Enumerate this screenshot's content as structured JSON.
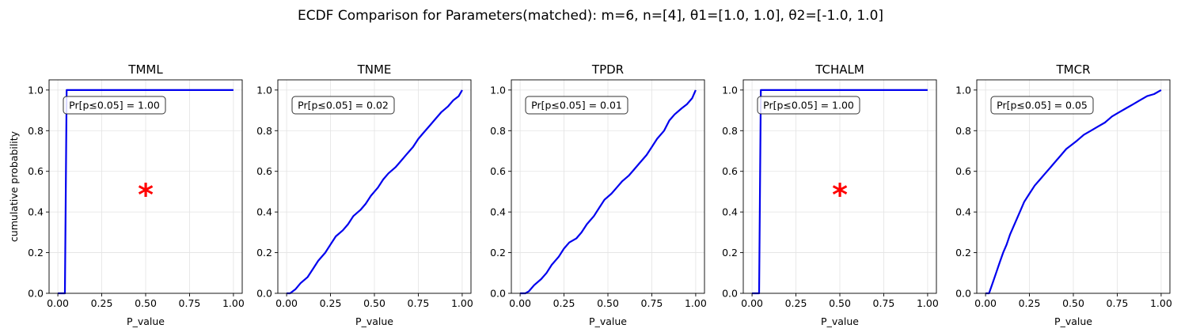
{
  "figure": {
    "title": "ECDF Comparison for Parameters(matched): m=6, n=[4], θ1=[1.0, 1.0], θ2=[-1.0, 1.0]"
  },
  "chart_data": [
    {
      "type": "line",
      "title": "TMML",
      "xlabel": "P_value",
      "ylabel": "cumulative probability",
      "xlim": [
        -0.05,
        1.05
      ],
      "ylim": [
        0.0,
        1.05
      ],
      "xticks": [
        "0.00",
        "0.25",
        "0.50",
        "0.75",
        "1.00"
      ],
      "yticks": [
        "0.0",
        "0.2",
        "0.4",
        "0.6",
        "0.8",
        "1.0"
      ],
      "grid": true,
      "line_color": "#0000ee",
      "annotation": "Pr[p≤0.05] = 1.00",
      "ecdf": {
        "x": [
          0.0,
          0.04,
          0.05,
          1.0
        ],
        "y": [
          0.0,
          0.0,
          1.0,
          1.0
        ]
      },
      "marker": {
        "x": 0.5,
        "y": 0.5,
        "symbol": "*",
        "color": "#ff0000"
      }
    },
    {
      "type": "line",
      "title": "TNME",
      "xlabel": "P_value",
      "ylabel": "",
      "xlim": [
        -0.05,
        1.05
      ],
      "ylim": [
        0.0,
        1.05
      ],
      "xticks": [
        "0.00",
        "0.25",
        "0.50",
        "0.75",
        "1.00"
      ],
      "yticks": [
        "0.0",
        "0.2",
        "0.4",
        "0.6",
        "0.8",
        "1.0"
      ],
      "grid": true,
      "line_color": "#0000ee",
      "annotation": "Pr[p≤0.05] = 0.02",
      "ecdf": {
        "x": [
          0.0,
          0.02,
          0.05,
          0.08,
          0.12,
          0.15,
          0.18,
          0.22,
          0.25,
          0.28,
          0.32,
          0.35,
          0.38,
          0.42,
          0.45,
          0.48,
          0.52,
          0.55,
          0.58,
          0.62,
          0.65,
          0.68,
          0.72,
          0.75,
          0.78,
          0.82,
          0.85,
          0.88,
          0.92,
          0.95,
          0.98,
          1.0
        ],
        "y": [
          0.0,
          0.0,
          0.02,
          0.05,
          0.08,
          0.12,
          0.16,
          0.2,
          0.24,
          0.28,
          0.31,
          0.34,
          0.38,
          0.41,
          0.44,
          0.48,
          0.52,
          0.56,
          0.59,
          0.62,
          0.65,
          0.68,
          0.72,
          0.76,
          0.79,
          0.83,
          0.86,
          0.89,
          0.92,
          0.95,
          0.97,
          1.0
        ]
      }
    },
    {
      "type": "line",
      "title": "TPDR",
      "xlabel": "P_value",
      "ylabel": "",
      "xlim": [
        -0.05,
        1.05
      ],
      "ylim": [
        0.0,
        1.05
      ],
      "xticks": [
        "0.00",
        "0.25",
        "0.50",
        "0.75",
        "1.00"
      ],
      "yticks": [
        "0.0",
        "0.2",
        "0.4",
        "0.6",
        "0.8",
        "1.0"
      ],
      "grid": true,
      "line_color": "#0000ee",
      "annotation": "Pr[p≤0.05] = 0.01",
      "ecdf": {
        "x": [
          0.0,
          0.03,
          0.05,
          0.08,
          0.12,
          0.15,
          0.18,
          0.22,
          0.25,
          0.28,
          0.32,
          0.35,
          0.38,
          0.42,
          0.45,
          0.48,
          0.52,
          0.55,
          0.58,
          0.62,
          0.65,
          0.68,
          0.72,
          0.75,
          0.78,
          0.82,
          0.85,
          0.88,
          0.92,
          0.95,
          0.98,
          1.0
        ],
        "y": [
          0.0,
          0.0,
          0.01,
          0.04,
          0.07,
          0.1,
          0.14,
          0.18,
          0.22,
          0.25,
          0.27,
          0.3,
          0.34,
          0.38,
          0.42,
          0.46,
          0.49,
          0.52,
          0.55,
          0.58,
          0.61,
          0.64,
          0.68,
          0.72,
          0.76,
          0.8,
          0.85,
          0.88,
          0.91,
          0.93,
          0.96,
          1.0
        ]
      }
    },
    {
      "type": "line",
      "title": "TCHALM",
      "xlabel": "P_value",
      "ylabel": "",
      "xlim": [
        -0.05,
        1.05
      ],
      "ylim": [
        0.0,
        1.05
      ],
      "xticks": [
        "0.00",
        "0.25",
        "0.50",
        "0.75",
        "1.00"
      ],
      "yticks": [
        "0.0",
        "0.2",
        "0.4",
        "0.6",
        "0.8",
        "1.0"
      ],
      "grid": true,
      "line_color": "#0000ee",
      "annotation": "Pr[p≤0.05] = 1.00",
      "ecdf": {
        "x": [
          0.0,
          0.04,
          0.05,
          1.0
        ],
        "y": [
          0.0,
          0.0,
          1.0,
          1.0
        ]
      },
      "marker": {
        "x": 0.5,
        "y": 0.5,
        "symbol": "*",
        "color": "#ff0000"
      }
    },
    {
      "type": "line",
      "title": "TMCR",
      "xlabel": "P_value",
      "ylabel": "",
      "xlim": [
        -0.05,
        1.05
      ],
      "ylim": [
        0.0,
        1.05
      ],
      "xticks": [
        "0.00",
        "0.25",
        "0.50",
        "0.75",
        "1.00"
      ],
      "yticks": [
        "0.0",
        "0.2",
        "0.4",
        "0.6",
        "0.8",
        "1.0"
      ],
      "grid": true,
      "line_color": "#0000ee",
      "annotation": "Pr[p≤0.05] = 0.05",
      "ecdf": {
        "x": [
          0.0,
          0.02,
          0.04,
          0.06,
          0.08,
          0.1,
          0.12,
          0.14,
          0.16,
          0.18,
          0.2,
          0.22,
          0.25,
          0.28,
          0.31,
          0.34,
          0.37,
          0.4,
          0.43,
          0.46,
          0.49,
          0.52,
          0.56,
          0.6,
          0.64,
          0.68,
          0.72,
          0.76,
          0.8,
          0.84,
          0.88,
          0.92,
          0.96,
          1.0
        ],
        "y": [
          0.0,
          0.0,
          0.05,
          0.1,
          0.15,
          0.2,
          0.24,
          0.29,
          0.33,
          0.37,
          0.41,
          0.45,
          0.49,
          0.53,
          0.56,
          0.59,
          0.62,
          0.65,
          0.68,
          0.71,
          0.73,
          0.75,
          0.78,
          0.8,
          0.82,
          0.84,
          0.87,
          0.89,
          0.91,
          0.93,
          0.95,
          0.97,
          0.98,
          1.0
        ]
      }
    }
  ]
}
